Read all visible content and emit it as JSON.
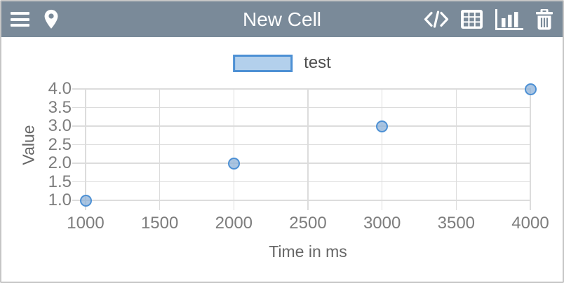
{
  "header": {
    "title": "New Cell",
    "left_icons": [
      "menu-icon",
      "location-pin-icon"
    ],
    "right_icons": [
      "code-icon",
      "table-icon",
      "bar-chart-icon",
      "trash-icon"
    ]
  },
  "legend": {
    "label": "test"
  },
  "chart_data": {
    "type": "scatter",
    "title": "",
    "series": [
      {
        "name": "test",
        "points": [
          {
            "x": 1000,
            "y": 1.0
          },
          {
            "x": 2000,
            "y": 2.0
          },
          {
            "x": 3000,
            "y": 3.0
          },
          {
            "x": 4000,
            "y": 4.0
          }
        ]
      }
    ],
    "xlabel": "Time in ms",
    "ylabel": "Value",
    "x_ticks": [
      1000,
      1500,
      2000,
      2500,
      3000,
      3500,
      4000
    ],
    "x_tick_labels": [
      "1000",
      "1500",
      "2000",
      "2500",
      "3000",
      "3500",
      "4000"
    ],
    "y_ticks": [
      1.0,
      1.5,
      2.0,
      2.5,
      3.0,
      3.5,
      4.0
    ],
    "y_tick_labels": [
      "1.0",
      "1.5",
      "2.0",
      "2.5",
      "3.0",
      "3.5",
      "4.0"
    ],
    "xlim": [
      1000,
      4000
    ],
    "ylim": [
      1.0,
      4.0
    ],
    "grid": true,
    "legend_position": "top-center"
  },
  "colors": {
    "header_bg": "#7a8a99",
    "frame_border": "#c6c6c6",
    "grid": "#dcdcdc",
    "tick_label": "#7d7d7d",
    "axis_title": "#666666",
    "legend_text": "#4f4f4f",
    "marker_stroke": "#4d90d4",
    "marker_fill": "#a9c8e9",
    "legend_swatch_fill": "#b3d0ec",
    "icon_color": "#ffffff"
  }
}
